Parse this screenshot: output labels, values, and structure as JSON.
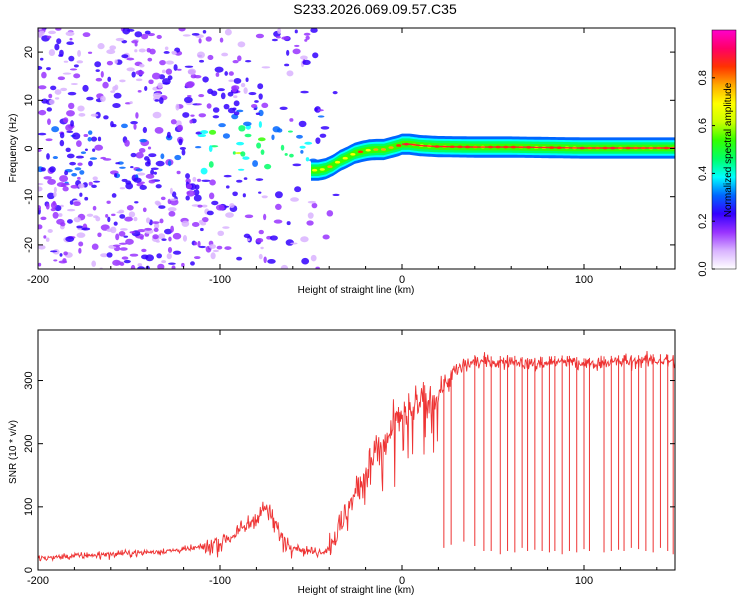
{
  "title": "S233.2026.069.09.57.C35",
  "chart_data": [
    {
      "type": "heatmap",
      "title": "S233.2026.069.09.57.C35",
      "xlabel": "Height of straight line (km)",
      "ylabel": "Frequency (Hz)",
      "xlim": [
        -200,
        150
      ],
      "ylim": [
        -25,
        25
      ],
      "xticks": [
        -200,
        -100,
        0,
        100
      ],
      "xtick_labels": [
        "-200",
        "-100",
        "0",
        "100"
      ],
      "yticks": [
        -20,
        -10,
        0,
        10,
        20
      ],
      "ytick_labels": [
        "-20",
        "-10",
        "0",
        "10",
        "20"
      ],
      "colorbar": {
        "label": "Normalized spectral amplitude",
        "range": [
          0,
          1
        ],
        "ticks": [
          0.0,
          0.2,
          0.4,
          0.6,
          0.8
        ],
        "tick_labels": [
          "0.0",
          "0.2",
          "0.4",
          "0.6",
          "0.8"
        ],
        "colors": [
          "#ffffff",
          "#d9b3ff",
          "#9933ff",
          "#3300ff",
          "#0066ff",
          "#00ffff",
          "#00ff66",
          "#33ff00",
          "#ccff00",
          "#ffff00",
          "#ffaa00",
          "#ff3300",
          "#ff0066",
          "#ff00cc"
        ]
      },
      "ridge": {
        "x": [
          -50,
          -46,
          -42,
          -38,
          -34,
          -30,
          -26,
          -22,
          -18,
          -14,
          -10,
          -6,
          -2,
          0,
          4,
          10,
          20,
          40,
          60,
          80,
          100,
          120,
          150
        ],
        "freq": [
          -4.5,
          -4.5,
          -4.2,
          -3.5,
          -2.5,
          -1.8,
          -1.0,
          -0.6,
          -0.3,
          -0.2,
          -0.2,
          0.2,
          0.6,
          0.9,
          0.9,
          0.6,
          0.4,
          0.3,
          0.3,
          0.2,
          0.1,
          0.1,
          0.1
        ]
      },
      "noise_region": [
        -200,
        -45
      ]
    },
    {
      "type": "line",
      "xlabel": "Height of straight line (km)",
      "ylabel": "SNR (10 * v/v)",
      "xlim": [
        -200,
        150
      ],
      "ylim": [
        0,
        380
      ],
      "xticks": [
        -200,
        -100,
        0,
        100
      ],
      "xtick_labels": [
        "-200",
        "-100",
        "0",
        "100"
      ],
      "yticks": [
        0,
        100,
        200,
        300
      ],
      "ytick_labels": [
        "0",
        "100",
        "200",
        "300"
      ],
      "color": "#ee3333",
      "series": [
        {
          "name": "SNR",
          "x": [
            -200,
            -180,
            -160,
            -140,
            -120,
            -105,
            -95,
            -85,
            -80,
            -75,
            -70,
            -65,
            -60,
            -55,
            -50,
            -45,
            -40,
            -35,
            -30,
            -25,
            -20,
            -15,
            -10,
            -5,
            0,
            5,
            10,
            15,
            20,
            25,
            30,
            35,
            40,
            50,
            60,
            70,
            80,
            90,
            100,
            110,
            120,
            130,
            140,
            150
          ],
          "values": [
            18,
            22,
            25,
            28,
            32,
            38,
            50,
            70,
            85,
            100,
            75,
            45,
            38,
            32,
            30,
            28,
            35,
            60,
            95,
            130,
            160,
            185,
            200,
            225,
            245,
            255,
            262,
            268,
            280,
            300,
            315,
            325,
            330,
            328,
            330,
            325,
            328,
            330,
            325,
            328,
            330,
            330,
            332,
            330
          ]
        }
      ],
      "dropouts": [
        {
          "x": 23,
          "floor": 35
        },
        {
          "x": 27,
          "floor": 40
        },
        {
          "x": 34,
          "floor": 45
        },
        {
          "x": 40,
          "floor": 38
        },
        {
          "x": 45,
          "floor": 30
        },
        {
          "x": 49,
          "floor": 30
        },
        {
          "x": 54,
          "floor": 25
        },
        {
          "x": 58,
          "floor": 30
        },
        {
          "x": 62,
          "floor": 28
        },
        {
          "x": 66,
          "floor": 35
        },
        {
          "x": 69,
          "floor": 30
        },
        {
          "x": 73,
          "floor": 32
        },
        {
          "x": 77,
          "floor": 30
        },
        {
          "x": 81,
          "floor": 28
        },
        {
          "x": 84,
          "floor": 30
        },
        {
          "x": 88,
          "floor": 25
        },
        {
          "x": 92,
          "floor": 30
        },
        {
          "x": 96,
          "floor": 28
        },
        {
          "x": 100,
          "floor": 33
        },
        {
          "x": 103,
          "floor": 30
        },
        {
          "x": 111,
          "floor": 28
        },
        {
          "x": 115,
          "floor": 30
        },
        {
          "x": 119,
          "floor": 32
        },
        {
          "x": 122,
          "floor": 30
        },
        {
          "x": 126,
          "floor": 35
        },
        {
          "x": 130,
          "floor": 33
        },
        {
          "x": 134,
          "floor": 30
        },
        {
          "x": 138,
          "floor": 28
        },
        {
          "x": 142,
          "floor": 35
        },
        {
          "x": 146,
          "floor": 30
        },
        {
          "x": 149,
          "floor": 25
        }
      ]
    }
  ]
}
